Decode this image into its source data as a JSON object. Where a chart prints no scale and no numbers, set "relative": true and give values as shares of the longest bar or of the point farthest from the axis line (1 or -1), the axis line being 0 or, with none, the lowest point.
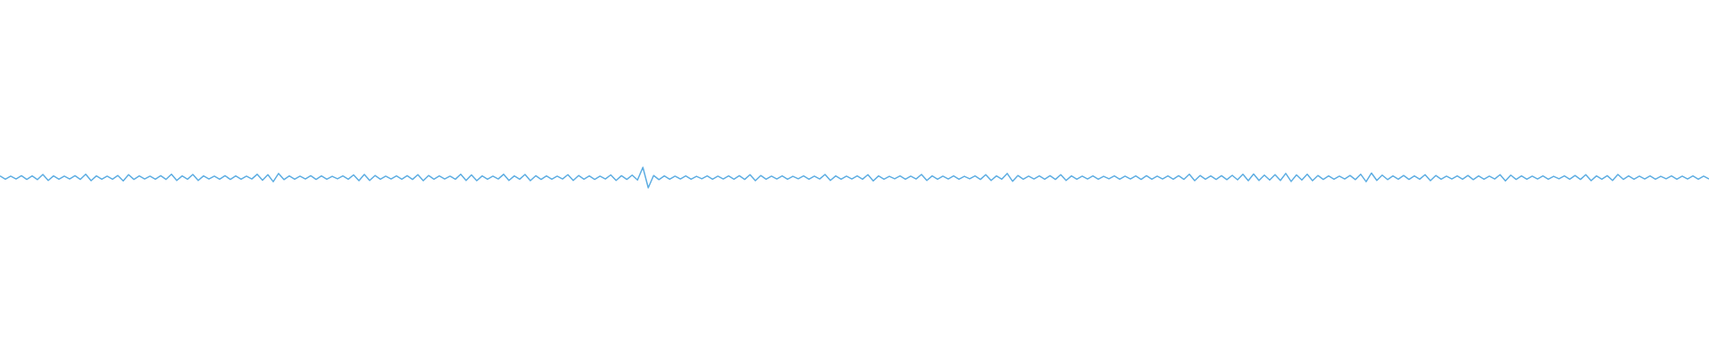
{
  "chart_data": {
    "type": "line",
    "relative": true,
    "categories": [
      null,
      null,
      null,
      null,
      null,
      null,
      null,
      null,
      null,
      null,
      null,
      null,
      null,
      null,
      null,
      null,
      null,
      null,
      null,
      null,
      null,
      null,
      null,
      null,
      null,
      null,
      null,
      null,
      null,
      null,
      null,
      null,
      null,
      null,
      null,
      null,
      null,
      null,
      null,
      null,
      null,
      null,
      null,
      null,
      null,
      null,
      null,
      null,
      null,
      null,
      null,
      null,
      null,
      null,
      null,
      null,
      null,
      null,
      null,
      null,
      null,
      null,
      null,
      null,
      null,
      null,
      null,
      null,
      null,
      null,
      null,
      null,
      null,
      null,
      null,
      null,
      null,
      null,
      null,
      null,
      null,
      null,
      null,
      null,
      null,
      null,
      null,
      null,
      null,
      null,
      null,
      null,
      null,
      null,
      null,
      null,
      null,
      null,
      null,
      null,
      null,
      null,
      null,
      null,
      null,
      null,
      null,
      null,
      null,
      null,
      null,
      null,
      null,
      null,
      null,
      null,
      null,
      null,
      null,
      null,
      null,
      null,
      null,
      null,
      null,
      null,
      null,
      null,
      null,
      null,
      null,
      null,
      null,
      null,
      null,
      null,
      null,
      null,
      null,
      null,
      null,
      null,
      null,
      null,
      null,
      null,
      null,
      null,
      null,
      null,
      null,
      null,
      null,
      null,
      null,
      null,
      null,
      null,
      null,
      null,
      null,
      null,
      null,
      null,
      null,
      null,
      null,
      null,
      null,
      null,
      null,
      null,
      null,
      null,
      null,
      null,
      null,
      null,
      null,
      null,
      null,
      null,
      null,
      null,
      null,
      null,
      null,
      null,
      null,
      null,
      null,
      null,
      null,
      null,
      null,
      null,
      null,
      null,
      null,
      null,
      null,
      null,
      null,
      null,
      null,
      null,
      null,
      null,
      null,
      null,
      null,
      null,
      null,
      null,
      null,
      null,
      null,
      null,
      null,
      null,
      null,
      null,
      null,
      null,
      null,
      null,
      null,
      null,
      null,
      null,
      null,
      null,
      null,
      null,
      null,
      null,
      null,
      null,
      null,
      null,
      null,
      null,
      null,
      null,
      null,
      null,
      null,
      null,
      null,
      null,
      null,
      null,
      null,
      null,
      null,
      null,
      null,
      null,
      null,
      null,
      null,
      null,
      null,
      null,
      null,
      null,
      null,
      null,
      null,
      null,
      null,
      null,
      null,
      null,
      null,
      null,
      null,
      null,
      null,
      null,
      null,
      null,
      null,
      null,
      null,
      null,
      null,
      null,
      null,
      null,
      null,
      null,
      null,
      null,
      null,
      null,
      null,
      null,
      null,
      null,
      null,
      null,
      null,
      null,
      null,
      null,
      null,
      null,
      null,
      null,
      null,
      null,
      null,
      null,
      null,
      null,
      null,
      null,
      null,
      null
    ],
    "series": [
      {
        "color": "#5dade2",
        "values": [
          0.58,
          0.42,
          0.57,
          0.43,
          0.59,
          0.41,
          0.58,
          0.4,
          0.65,
          0.36,
          0.58,
          0.42,
          0.57,
          0.43,
          0.59,
          0.41,
          0.66,
          0.35,
          0.58,
          0.42,
          0.57,
          0.42,
          0.6,
          0.34,
          0.64,
          0.41,
          0.58,
          0.43,
          0.57,
          0.42,
          0.59,
          0.41,
          0.66,
          0.36,
          0.58,
          0.42,
          0.65,
          0.36,
          0.58,
          0.43,
          0.57,
          0.42,
          0.59,
          0.41,
          0.58,
          0.42,
          0.57,
          0.43,
          0.66,
          0.37,
          0.64,
          0.3,
          0.7,
          0.4,
          0.58,
          0.42,
          0.57,
          0.43,
          0.59,
          0.41,
          0.58,
          0.42,
          0.56,
          0.44,
          0.58,
          0.42,
          0.63,
          0.35,
          0.65,
          0.36,
          0.6,
          0.42,
          0.57,
          0.43,
          0.58,
          0.42,
          0.59,
          0.41,
          0.64,
          0.35,
          0.6,
          0.42,
          0.58,
          0.43,
          0.57,
          0.42,
          0.66,
          0.36,
          0.63,
          0.35,
          0.58,
          0.42,
          0.57,
          0.43,
          0.66,
          0.36,
          0.58,
          0.42,
          0.65,
          0.35,
          0.59,
          0.41,
          0.58,
          0.42,
          0.57,
          0.43,
          0.64,
          0.36,
          0.6,
          0.42,
          0.58,
          0.41,
          0.57,
          0.43,
          0.63,
          0.36,
          0.59,
          0.41,
          0.62,
          0.38,
          1,
          0,
          0.6,
          0.4,
          0.58,
          0.42,
          0.57,
          0.43,
          0.58,
          0.42,
          0.56,
          0.44,
          0.58,
          0.42,
          0.57,
          0.43,
          0.58,
          0.42,
          0.59,
          0.41,
          0.64,
          0.35,
          0.6,
          0.42,
          0.57,
          0.43,
          0.58,
          0.42,
          0.56,
          0.44,
          0.58,
          0.42,
          0.57,
          0.43,
          0.65,
          0.36,
          0.58,
          0.42,
          0.57,
          0.43,
          0.58,
          0.42,
          0.64,
          0.34,
          0.58,
          0.42,
          0.56,
          0.44,
          0.58,
          0.42,
          0.57,
          0.43,
          0.65,
          0.36,
          0.58,
          0.42,
          0.57,
          0.43,
          0.58,
          0.42,
          0.56,
          0.44,
          0.58,
          0.41,
          0.64,
          0.36,
          0.58,
          0.42,
          0.7,
          0.32,
          0.6,
          0.42,
          0.57,
          0.43,
          0.58,
          0.42,
          0.59,
          0.41,
          0.64,
          0.36,
          0.58,
          0.42,
          0.57,
          0.43,
          0.58,
          0.42,
          0.56,
          0.44,
          0.58,
          0.42,
          0.57,
          0.43,
          0.58,
          0.41,
          0.59,
          0.42,
          0.57,
          0.43,
          0.58,
          0.42,
          0.59,
          0.41,
          0.66,
          0.35,
          0.6,
          0.42,
          0.58,
          0.41,
          0.59,
          0.4,
          0.61,
          0.39,
          0.66,
          0.35,
          0.67,
          0.36,
          0.62,
          0.38,
          0.64,
          0.36,
          0.7,
          0.31,
          0.63,
          0.38,
          0.66,
          0.35,
          0.6,
          0.41,
          0.58,
          0.42,
          0.57,
          0.43,
          0.6,
          0.4,
          0.66,
          0.3,
          0.72,
          0.36,
          0.62,
          0.4,
          0.58,
          0.42,
          0.6,
          0.41,
          0.58,
          0.42,
          0.64,
          0.35,
          0.6,
          0.42,
          0.57,
          0.43,
          0.58,
          0.42,
          0.6,
          0.4,
          0.58,
          0.42,
          0.57,
          0.43,
          0.64,
          0.34,
          0.62,
          0.41,
          0.58,
          0.42,
          0.57,
          0.43,
          0.58,
          0.42,
          0.56,
          0.44,
          0.58,
          0.42,
          0.6,
          0.41,
          0.64,
          0.35,
          0.58,
          0.42,
          0.59,
          0.36,
          0.65,
          0.41,
          0.58,
          0.42,
          0.57,
          0.43,
          0.58,
          0.42,
          0.56,
          0.44,
          0.58,
          0.42,
          0.57,
          0.43,
          0.58,
          0.42,
          0.57,
          0.43
        ]
      }
    ]
  }
}
